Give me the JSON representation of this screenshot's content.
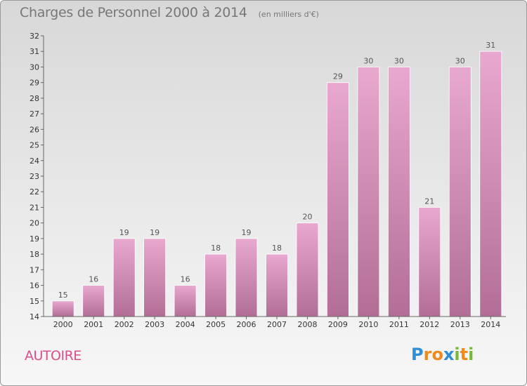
{
  "title": "Charges de Personnel 2000 à 2014",
  "subtitle": "(en milliers d'€)",
  "commune": "AUTOIRE",
  "logo": {
    "text": "Proxiti",
    "letters": [
      {
        "char": "P",
        "color": "#2f8fd6"
      },
      {
        "char": "r",
        "color": "#f08a1c"
      },
      {
        "char": "o",
        "color": "#f08a1c"
      },
      {
        "char": "x",
        "color": "#2f8fd6"
      },
      {
        "char": "i",
        "color": "#79b83a"
      },
      {
        "char": "t",
        "color": "#f08a1c"
      },
      {
        "char": "i",
        "color": "#79b83a"
      }
    ]
  },
  "colors": {
    "bar_top": "#e9a8cf",
    "bar_bottom": "#b26e96",
    "axis": "#666666",
    "text": "#555555"
  },
  "chart_data": {
    "type": "bar",
    "title": "Charges de Personnel 2000 à 2014",
    "subtitle": "(en milliers d'€)",
    "categories": [
      "2000",
      "2001",
      "2002",
      "2003",
      "2004",
      "2005",
      "2006",
      "2007",
      "2008",
      "2009",
      "2010",
      "2011",
      "2012",
      "2013",
      "2014"
    ],
    "values": [
      15,
      16,
      19,
      19,
      16,
      18,
      19,
      18,
      20,
      29,
      30,
      30,
      21,
      30,
      31
    ],
    "ylim": [
      14,
      32
    ],
    "yticks": [
      14,
      15,
      16,
      17,
      18,
      19,
      20,
      21,
      22,
      23,
      24,
      25,
      26,
      27,
      28,
      29,
      30,
      31,
      32
    ],
    "xlabel": "",
    "ylabel": "",
    "grid": false,
    "legend": "none",
    "data_labels": true
  }
}
